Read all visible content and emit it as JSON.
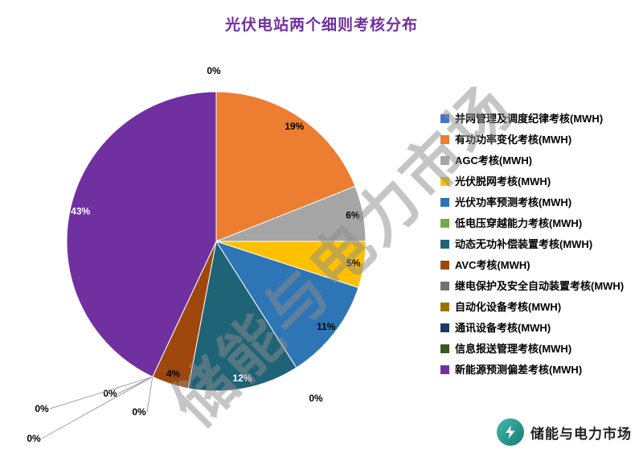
{
  "title": "光伏电站两个细则考核分布",
  "accent_color": "#7030A0",
  "watermark": "储能与电力市场",
  "footer_logo": {
    "text": "储能与电力市场",
    "icon_color": "#2aa79b"
  },
  "chart_data": {
    "type": "pie",
    "title": "光伏电站两个细则考核分布",
    "legend_position": "right",
    "start_angle_deg": 0,
    "direction": "clockwise",
    "categories": [
      "并网管理及调度纪律考核(MWH)",
      "有功功率变化考核(MWH)",
      "AGC考核(MWH)",
      "光伏脱网考核(MWH)",
      "光伏功率预测考核(MWH)",
      "低电压穿越能力考核(MWH)",
      "动态无功补偿装置考核(MWH)",
      "AVC考核(MWH)",
      "继电保护及安全自动装置考核(MWH)",
      "自动化设备考核(MWH)",
      "通讯设备考核(MWH)",
      "信息报送管理考核(MWH)",
      "新能源预测偏差考核(MWH)"
    ],
    "values": [
      0,
      19,
      6,
      5,
      11,
      0,
      12,
      4,
      0,
      0,
      0,
      0,
      43
    ],
    "labels": [
      "0%",
      "19%",
      "6%",
      "5%",
      "11%",
      "0%",
      "12%",
      "4%",
      "0%",
      "0%",
      "0%",
      "0%",
      "43%"
    ],
    "colors": [
      "#4472C4",
      "#ED7D31",
      "#A5A5A5",
      "#FFC000",
      "#2E75B6",
      "#70AD47",
      "#1F6377",
      "#9E480E",
      "#767171",
      "#997300",
      "#1F3864",
      "#385723",
      "#7030A0"
    ]
  }
}
